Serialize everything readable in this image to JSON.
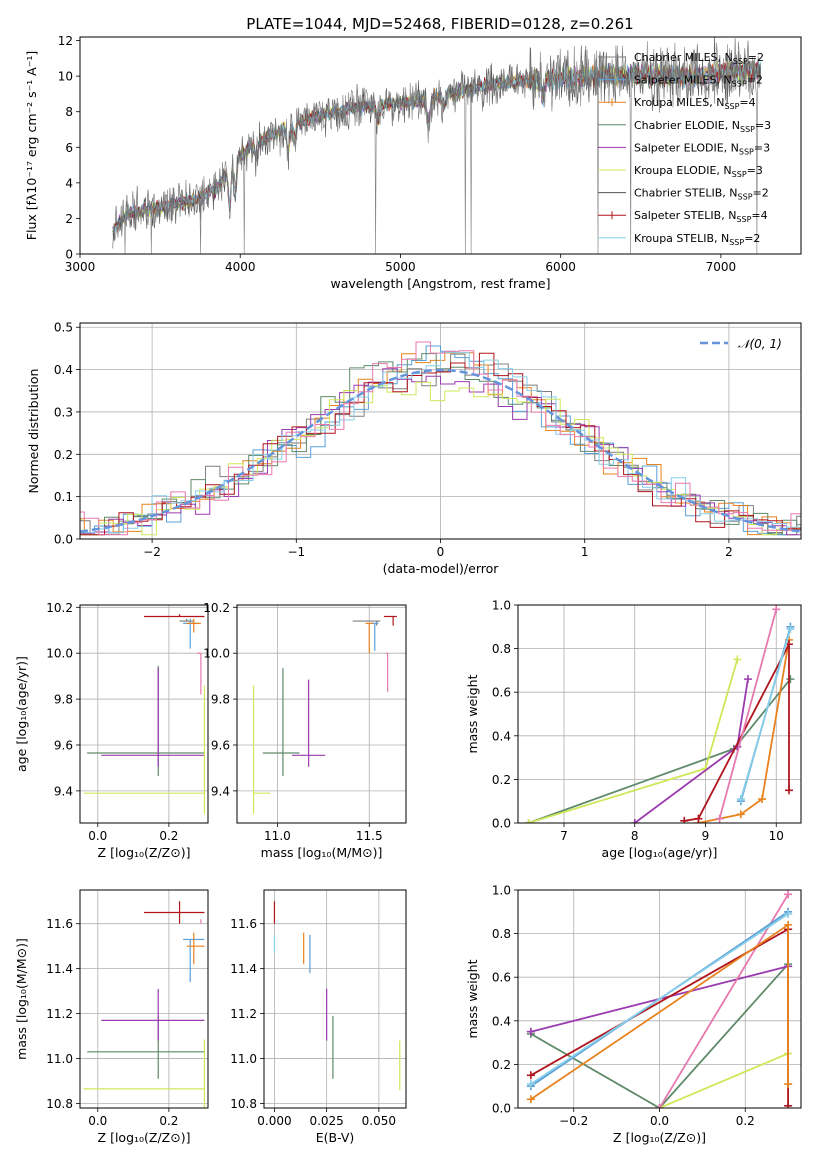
{
  "title": "PLATE=1044, MJD=52468, FIBERID=0128, z=0.261",
  "colors": {
    "Chabrier MILES": "#7f7f7f",
    "Salpeter MILES": "#5aa0d8",
    "Kroupa MILES": "#e8821e",
    "Chabrier ELODIE": "#5f8a6a",
    "Salpeter ELODIE": "#9b3bb0",
    "Kroupa ELODIE": "#cfe85a",
    "Chabrier STELIB": "#555555",
    "Salpeter STELIB": "#b0141c",
    "Kroupa STELIB": "#87cde8",
    "pink": "#e879b0",
    "normal": "#6495dc"
  },
  "chart_data": [
    {
      "type": "line",
      "name": "spectrum",
      "xlabel": "wavelength [Angstrom, rest frame]",
      "ylabel": "Flux [fλ10⁻¹⁷ erg cm⁻² s⁻¹ A⁻¹]",
      "xlim": [
        3000,
        7500
      ],
      "ylim": [
        0,
        12.2
      ],
      "xticks": [
        "3000",
        "4000",
        "5000",
        "6000",
        "7000"
      ],
      "yticks": [
        "0",
        "2",
        "4",
        "6",
        "8",
        "10",
        "12"
      ],
      "xtick_values": [
        3000,
        4000,
        5000,
        6000,
        7000
      ],
      "ytick_values": [
        0,
        2,
        4,
        6,
        8,
        10,
        12
      ],
      "legend": [
        {
          "label": "Chabrier MILES, N",
          "sub": "SSP",
          "suffix": "=2",
          "key": "Chabrier MILES"
        },
        {
          "label": "Salpeter MILES, N",
          "sub": "SSP",
          "suffix": "=2",
          "key": "Salpeter MILES"
        },
        {
          "label": "Kroupa MILES, N",
          "sub": "SSP",
          "suffix": "=4",
          "key": "Kroupa MILES"
        },
        {
          "label": "Chabrier ELODIE, N",
          "sub": "SSP",
          "suffix": "=3",
          "key": "Chabrier ELODIE"
        },
        {
          "label": "Salpeter ELODIE, N",
          "sub": "SSP",
          "suffix": "=3",
          "key": "Salpeter ELODIE"
        },
        {
          "label": "Kroupa ELODIE, N",
          "sub": "SSP",
          "suffix": "=3",
          "key": "Kroupa ELODIE"
        },
        {
          "label": "Chabrier STELIB, N",
          "sub": "SSP",
          "suffix": "=2",
          "key": "Chabrier STELIB"
        },
        {
          "label": "Salpeter STELIB, N",
          "sub": "SSP",
          "suffix": "=4",
          "key": "Salpeter STELIB"
        },
        {
          "label": "Kroupa STELIB, N",
          "sub": "SSP",
          "suffix": "=2",
          "key": "Kroupa STELIB"
        }
      ],
      "continuum": [
        [
          3200,
          1.3
        ],
        [
          3300,
          2.3
        ],
        [
          3500,
          2.6
        ],
        [
          3700,
          3.0
        ],
        [
          3850,
          3.6
        ],
        [
          3950,
          5.2
        ],
        [
          4100,
          6.2
        ],
        [
          4300,
          7.2
        ],
        [
          4500,
          7.8
        ],
        [
          4700,
          8.2
        ],
        [
          4900,
          8.4
        ],
        [
          5100,
          8.6
        ],
        [
          5300,
          9.0
        ],
        [
          5600,
          9.6
        ],
        [
          5900,
          9.8
        ],
        [
          6200,
          10.0
        ],
        [
          6500,
          10.1
        ],
        [
          6800,
          10.0
        ],
        [
          7000,
          10.2
        ],
        [
          7200,
          10.3
        ]
      ],
      "absorption": [
        [
          3934,
          2.2
        ],
        [
          3968,
          2.0
        ],
        [
          4102,
          0.8
        ],
        [
          4300,
          1.4
        ],
        [
          4340,
          0.8
        ],
        [
          4861,
          0.9
        ],
        [
          5175,
          1.6
        ],
        [
          5270,
          0.8
        ],
        [
          5890,
          1.0
        ]
      ]
    },
    {
      "type": "bar",
      "name": "residual-histograms",
      "xlabel": "(data-model)/error",
      "ylabel": "Normed distribution",
      "xlim": [
        -2.5,
        2.5
      ],
      "ylim": [
        0,
        0.51
      ],
      "xticks": [
        "−2",
        "−1",
        "0",
        "1",
        "2"
      ],
      "yticks": [
        "0.0",
        "0.1",
        "0.2",
        "0.3",
        "0.4",
        "0.5"
      ],
      "xtick_values": [
        -2,
        -1,
        0,
        1,
        2
      ],
      "ytick_values": [
        0,
        0.1,
        0.2,
        0.3,
        0.4,
        0.5
      ],
      "bin_width": 0.1,
      "legend": [
        "𝒩(0, 1)"
      ],
      "jitter": 0.035
    },
    {
      "type": "scatter",
      "name": "age-vs-Z",
      "xlabel": "Z [log₁₀(Z/Z⊙)]",
      "ylabel": "age  [log₁₀(age/yr)]",
      "xlim": [
        -0.05,
        0.31
      ],
      "ylim": [
        9.26,
        10.21
      ],
      "xticks": [
        "0.0",
        "0.2"
      ],
      "xtick_values": [
        0.0,
        0.2
      ],
      "yticks": [
        "9.4",
        "9.6",
        "9.8",
        "10.0",
        "10.2"
      ],
      "ytick_values": [
        9.4,
        9.6,
        9.8,
        10.0,
        10.2
      ],
      "points": [
        {
          "key": "Salpeter STELIB",
          "x": 0.23,
          "y": 10.16,
          "xerr": [
            0.1,
            0.07
          ],
          "yerr": [
            0.0,
            0.01
          ]
        },
        {
          "key": "Chabrier MILES",
          "x": 0.25,
          "y": 10.14,
          "xerr": [
            0.02,
            0.02
          ],
          "yerr": [
            0.0,
            0.01
          ]
        },
        {
          "key": "Salpeter MILES",
          "x": 0.26,
          "y": 10.13,
          "xerr": [
            0.02,
            0.02
          ],
          "yerr": [
            0.11,
            0.02
          ]
        },
        {
          "key": "Kroupa MILES",
          "x": 0.27,
          "y": 10.13,
          "xerr": [
            0.02,
            0.02
          ],
          "yerr": [
            0.04,
            0.02
          ]
        },
        {
          "key": "pink",
          "x": 0.29,
          "y": 10.0,
          "xerr": [
            0.01,
            0.0
          ],
          "yerr": [
            0.18,
            0.0
          ]
        },
        {
          "key": "Chabrier ELODIE",
          "x": 0.17,
          "y": 9.565,
          "xerr": [
            0.2,
            0.13
          ],
          "yerr": [
            0.1,
            0.38
          ]
        },
        {
          "key": "Salpeter ELODIE",
          "x": 0.17,
          "y": 9.555,
          "xerr": [
            0.16,
            0.13
          ],
          "yerr": [
            0.05,
            0.38
          ]
        },
        {
          "key": "Kroupa ELODIE",
          "x": 0.3,
          "y": 9.39,
          "xerr": [
            0.34,
            0.0
          ],
          "yerr": [
            0.09,
            0.47
          ]
        }
      ]
    },
    {
      "type": "scatter",
      "name": "age-vs-mass",
      "xlabel": "mass [log₁₀(M/M⊙)]",
      "ylabel": "",
      "xlim": [
        10.78,
        11.7
      ],
      "ylim": [
        9.26,
        10.21
      ],
      "xticks": [
        "11.0",
        "11.5"
      ],
      "xtick_values": [
        11.0,
        11.5
      ],
      "yticks": [
        "9.4",
        "9.6",
        "9.8",
        "10.0",
        "10.2"
      ],
      "ytick_values": [
        9.4,
        9.6,
        9.8,
        10.0,
        10.2
      ],
      "points": [
        {
          "key": "Salpeter STELIB",
          "x": 11.63,
          "y": 10.16,
          "xerr": [
            0.05,
            0.02
          ],
          "yerr": [
            0.04,
            0.0
          ]
        },
        {
          "key": "Chabrier MILES",
          "x": 11.54,
          "y": 10.14,
          "xerr": [
            0.13,
            0.02
          ],
          "yerr": [
            0.02,
            0.0
          ]
        },
        {
          "key": "Salpeter MILES",
          "x": 11.53,
          "y": 10.13,
          "xerr": [
            0.02,
            0.02
          ],
          "yerr": [
            0.12,
            0.0
          ]
        },
        {
          "key": "Kroupa MILES",
          "x": 11.5,
          "y": 10.13,
          "xerr": [
            0.02,
            0.02
          ],
          "yerr": [
            0.13,
            0.0
          ]
        },
        {
          "key": "pink",
          "x": 11.6,
          "y": 10.0,
          "xerr": [
            0.01,
            0.0
          ],
          "yerr": [
            0.17,
            0.0
          ]
        },
        {
          "key": "Chabrier ELODIE",
          "x": 11.03,
          "y": 9.565,
          "xerr": [
            0.11,
            0.09
          ],
          "yerr": [
            0.1,
            0.37
          ]
        },
        {
          "key": "Salpeter ELODIE",
          "x": 11.17,
          "y": 9.555,
          "xerr": [
            0.09,
            0.09
          ],
          "yerr": [
            0.05,
            0.33
          ]
        },
        {
          "key": "Kroupa ELODIE",
          "x": 10.87,
          "y": 9.39,
          "xerr": [
            0.0,
            0.09
          ],
          "yerr": [
            0.09,
            0.47
          ]
        }
      ]
    },
    {
      "type": "line",
      "name": "mass-weight-vs-age",
      "xlabel": "age  [log₁₀(age/yr)]",
      "ylabel": "mass weight",
      "xlim": [
        6.35,
        10.35
      ],
      "ylim": [
        0,
        1.0
      ],
      "xticks": [
        "7",
        "8",
        "9",
        "10"
      ],
      "xtick_values": [
        7,
        8,
        9,
        10
      ],
      "yticks": [
        "0.0",
        "0.2",
        "0.4",
        "0.6",
        "0.8",
        "1.0"
      ],
      "ytick_values": [
        0,
        0.2,
        0.4,
        0.6,
        0.8,
        1.0
      ],
      "series": [
        {
          "key": "Chabrier ELODIE",
          "points": [
            [
              6.5,
              0.0
            ],
            [
              9.4,
              0.34
            ],
            [
              10.2,
              0.66
            ]
          ]
        },
        {
          "key": "Kroupa ELODIE",
          "points": [
            [
              6.5,
              0.0
            ],
            [
              9.0,
              0.25
            ],
            [
              9.45,
              0.75
            ]
          ]
        },
        {
          "key": "Salpeter ELODIE",
          "points": [
            [
              8.0,
              0.0
            ],
            [
              9.45,
              0.35
            ],
            [
              9.6,
              0.66
            ]
          ]
        },
        {
          "key": "Kroupa MILES",
          "points": [
            [
              8.9,
              0.0
            ],
            [
              9.5,
              0.04
            ],
            [
              9.8,
              0.11
            ],
            [
              10.18,
              0.84
            ]
          ]
        },
        {
          "key": "Salpeter STELIB",
          "points": [
            [
              8.7,
              0.01
            ],
            [
              8.9,
              0.02
            ],
            [
              10.18,
              0.82
            ],
            [
              10.18,
              0.15
            ]
          ]
        },
        {
          "key": "Salpeter MILES",
          "points": [
            [
              9.5,
              0.1
            ],
            [
              10.2,
              0.9
            ]
          ]
        },
        {
          "key": "Kroupa STELIB",
          "points": [
            [
              9.5,
              0.11
            ],
            [
              10.2,
              0.89
            ]
          ]
        },
        {
          "key": "pink",
          "points": [
            [
              9.2,
              0.02
            ],
            [
              10.0,
              0.98
            ]
          ]
        }
      ]
    },
    {
      "type": "scatter",
      "name": "mass-vs-Z",
      "xlabel": "Z [log₁₀(Z/Z⊙)]",
      "ylabel": "mass [log₁₀(M/M⊙)]",
      "xlim": [
        -0.05,
        0.31
      ],
      "ylim": [
        10.78,
        11.75
      ],
      "xticks": [
        "0.0",
        "0.2"
      ],
      "xtick_values": [
        0.0,
        0.2
      ],
      "yticks": [
        "10.8",
        "11.0",
        "11.2",
        "11.4",
        "11.6"
      ],
      "ytick_values": [
        10.8,
        11.0,
        11.2,
        11.4,
        11.6
      ],
      "points": [
        {
          "key": "Salpeter STELIB",
          "x": 0.23,
          "y": 11.65,
          "xerr": [
            0.1,
            0.07
          ],
          "yerr": [
            0.05,
            0.05
          ]
        },
        {
          "key": "Salpeter MILES",
          "x": 0.26,
          "y": 11.53,
          "xerr": [
            0.02,
            0.04
          ],
          "yerr": [
            0.19,
            0.0
          ]
        },
        {
          "key": "Kroupa MILES",
          "x": 0.27,
          "y": 11.5,
          "xerr": [
            0.02,
            0.03
          ],
          "yerr": [
            0.08,
            0.06
          ]
        },
        {
          "key": "pink",
          "x": 0.29,
          "y": 11.6,
          "xerr": [
            0.0,
            0.0
          ],
          "yerr": [
            0.0,
            0.02
          ]
        },
        {
          "key": "Chabrier ELODIE",
          "x": 0.17,
          "y": 11.03,
          "xerr": [
            0.2,
            0.13
          ],
          "yerr": [
            0.12,
            0.16
          ]
        },
        {
          "key": "Salpeter ELODIE",
          "x": 0.17,
          "y": 11.17,
          "xerr": [
            0.16,
            0.13
          ],
          "yerr": [
            0.09,
            0.14
          ]
        },
        {
          "key": "Kroupa ELODIE",
          "x": 0.3,
          "y": 10.865,
          "xerr": [
            0.34,
            0.0
          ],
          "yerr": [
            0.09,
            0.22
          ]
        }
      ]
    },
    {
      "type": "scatter",
      "name": "mass-vs-ebv",
      "xlabel": "E(B-V)",
      "ylabel": "",
      "xlim": [
        -0.005,
        0.063
      ],
      "ylim": [
        10.78,
        11.75
      ],
      "xticks": [
        "0.000",
        "0.025",
        "0.050"
      ],
      "xtick_values": [
        0.0,
        0.025,
        0.05
      ],
      "yticks": [
        "10.8",
        "11.0",
        "11.2",
        "11.4",
        "11.6"
      ],
      "ytick_values": [
        10.8,
        11.0,
        11.2,
        11.4,
        11.6
      ],
      "points": [
        {
          "key": "Salpeter STELIB",
          "x": 0.0,
          "y": 11.65,
          "xerr": [
            0,
            0
          ],
          "yerr": [
            0.05,
            0.05
          ]
        },
        {
          "key": "Kroupa STELIB",
          "x": 0.0,
          "y": 11.53,
          "xerr": [
            0,
            0
          ],
          "yerr": [
            0.06,
            0.02
          ]
        },
        {
          "key": "Kroupa MILES",
          "x": 0.014,
          "y": 11.5,
          "xerr": [
            0,
            0
          ],
          "yerr": [
            0.08,
            0.06
          ]
        },
        {
          "key": "Salpeter MILES",
          "x": 0.017,
          "y": 11.45,
          "xerr": [
            0,
            0
          ],
          "yerr": [
            0.07,
            0.1
          ]
        },
        {
          "key": "Salpeter ELODIE",
          "x": 0.025,
          "y": 11.17,
          "xerr": [
            0,
            0
          ],
          "yerr": [
            0.09,
            0.14
          ]
        },
        {
          "key": "Chabrier ELODIE",
          "x": 0.028,
          "y": 11.03,
          "xerr": [
            0,
            0
          ],
          "yerr": [
            0.12,
            0.16
          ]
        },
        {
          "key": "Kroupa ELODIE",
          "x": 0.06,
          "y": 10.95,
          "xerr": [
            0,
            0
          ],
          "yerr": [
            0.09,
            0.13
          ]
        }
      ]
    },
    {
      "type": "line",
      "name": "mass-weight-vs-Z",
      "xlabel": "Z [log₁₀(Z/Z⊙)]",
      "ylabel": "mass weight",
      "xlim": [
        -0.33,
        0.33
      ],
      "ylim": [
        0,
        1.0
      ],
      "xticks": [
        "−0.2",
        "0.0",
        "0.2"
      ],
      "xtick_values": [
        -0.2,
        0.0,
        0.2
      ],
      "yticks": [
        "0.0",
        "0.2",
        "0.4",
        "0.6",
        "0.8",
        "1.0"
      ],
      "ytick_values": [
        0,
        0.2,
        0.4,
        0.6,
        0.8,
        1.0
      ],
      "series": [
        {
          "key": "Chabrier ELODIE",
          "points": [
            [
              -0.3,
              0.34
            ],
            [
              0.0,
              0.0
            ],
            [
              0.3,
              0.66
            ]
          ]
        },
        {
          "key": "Salpeter ELODIE",
          "points": [
            [
              -0.3,
              0.35
            ],
            [
              0.3,
              0.65
            ]
          ]
        },
        {
          "key": "Kroupa ELODIE",
          "points": [
            [
              0.0,
              0.0
            ],
            [
              0.3,
              0.25
            ]
          ]
        },
        {
          "key": "pink",
          "points": [
            [
              0.0,
              0.0
            ],
            [
              0.3,
              0.98
            ]
          ]
        },
        {
          "key": "Salpeter STELIB",
          "points": [
            [
              -0.3,
              0.15
            ],
            [
              0.3,
              0.82
            ],
            [
              0.3,
              0.01
            ]
          ]
        },
        {
          "key": "Kroupa MILES",
          "points": [
            [
              -0.3,
              0.04
            ],
            [
              0.3,
              0.84
            ],
            [
              0.3,
              0.11
            ]
          ]
        },
        {
          "key": "Salpeter MILES",
          "points": [
            [
              -0.3,
              0.1
            ],
            [
              0.3,
              0.9
            ]
          ]
        },
        {
          "key": "Kroupa STELIB",
          "points": [
            [
              -0.3,
              0.11
            ],
            [
              0.3,
              0.89
            ]
          ]
        }
      ]
    }
  ]
}
